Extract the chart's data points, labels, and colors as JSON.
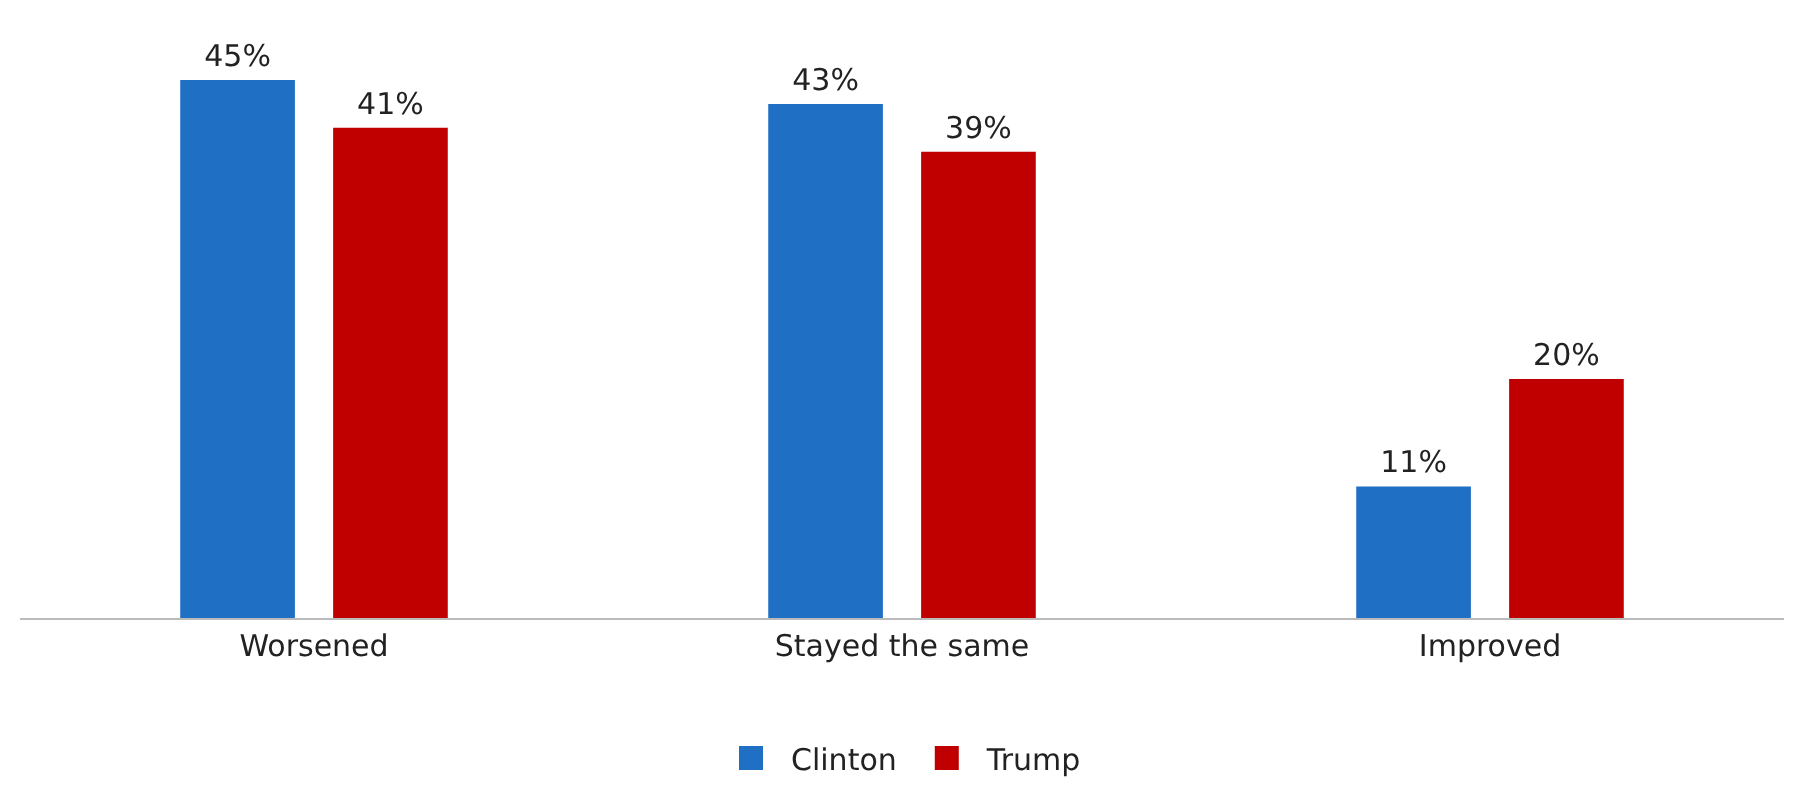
{
  "chart_data": {
    "type": "bar",
    "categories": [
      "Worsened",
      "Stayed the same",
      "Improved"
    ],
    "series": [
      {
        "name": "Clinton",
        "color": "#1f6fc5",
        "values": [
          45,
          43,
          11
        ],
        "value_labels": [
          "45%",
          "43%",
          "11%"
        ]
      },
      {
        "name": "Trump",
        "color": "#c00000",
        "values": [
          41,
          39,
          20
        ],
        "value_labels": [
          "41%",
          "39%",
          "20%"
        ]
      }
    ],
    "legend": "bottom"
  }
}
